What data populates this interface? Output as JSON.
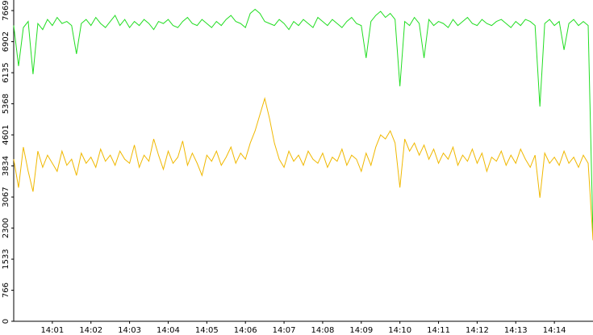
{
  "chart_data": {
    "type": "line",
    "x": [
      0,
      0.125,
      0.25,
      0.375,
      0.5,
      0.625,
      0.75,
      0.875,
      1,
      1.125,
      1.25,
      1.375,
      1.5,
      1.625,
      1.75,
      1.875,
      2,
      2.125,
      2.25,
      2.375,
      2.5,
      2.625,
      2.75,
      2.875,
      3,
      3.125,
      3.25,
      3.375,
      3.5,
      3.625,
      3.75,
      3.875,
      4,
      4.125,
      4.25,
      4.375,
      4.5,
      4.625,
      4.75,
      4.875,
      5,
      5.125,
      5.25,
      5.375,
      5.5,
      5.625,
      5.75,
      5.875,
      6,
      6.125,
      6.25,
      6.375,
      6.5,
      6.625,
      6.75,
      6.875,
      7,
      7.125,
      7.25,
      7.375,
      7.5,
      7.625,
      7.75,
      7.875,
      8,
      8.125,
      8.25,
      8.375,
      8.5,
      8.625,
      8.75,
      8.875,
      9,
      9.125,
      9.25,
      9.375,
      9.5,
      9.625,
      9.75,
      9.875,
      10,
      10.125,
      10.25,
      10.375,
      10.5,
      10.625,
      10.75,
      10.875,
      11,
      11.125,
      11.25,
      11.375,
      11.5,
      11.625,
      11.75,
      11.875,
      12,
      12.125,
      12.25,
      12.375,
      12.5,
      12.625,
      12.75,
      12.875,
      13,
      13.125,
      13.25,
      13.375,
      13.5,
      13.625,
      13.75,
      13.875,
      14,
      14.125,
      14.25,
      14.375,
      14.5,
      14.625,
      14.75,
      14.875,
      15
    ],
    "series": [
      {
        "color": "#22dd22",
        "values": [
          7300,
          6300,
          7250,
          7400,
          6100,
          7350,
          7200,
          7450,
          7300,
          7500,
          7350,
          7400,
          7300,
          6600,
          7350,
          7450,
          7300,
          7500,
          7350,
          7250,
          7400,
          7550,
          7300,
          7450,
          7250,
          7400,
          7300,
          7450,
          7350,
          7200,
          7400,
          7350,
          7450,
          7300,
          7250,
          7400,
          7500,
          7350,
          7300,
          7450,
          7350,
          7250,
          7400,
          7300,
          7450,
          7550,
          7400,
          7350,
          7250,
          7600,
          7700,
          7600,
          7400,
          7350,
          7300,
          7450,
          7350,
          7200,
          7400,
          7300,
          7450,
          7350,
          7250,
          7500,
          7400,
          7300,
          7450,
          7350,
          7250,
          7400,
          7500,
          7350,
          7300,
          6500,
          7400,
          7550,
          7650,
          7500,
          7600,
          7450,
          5800,
          7400,
          7300,
          7500,
          7350,
          6500,
          7450,
          7300,
          7400,
          7350,
          7250,
          7450,
          7300,
          7400,
          7500,
          7350,
          7300,
          7450,
          7350,
          7300,
          7400,
          7450,
          7350,
          7250,
          7400,
          7300,
          7450,
          7400,
          7300,
          5300,
          7350,
          7450,
          7300,
          7400,
          6700,
          7350,
          7450,
          7300,
          7400,
          7300,
          2100
        ]
      },
      {
        "color": "#f0b800",
        "values": [
          4000,
          3300,
          4300,
          3700,
          3200,
          4200,
          3800,
          4100,
          3900,
          3700,
          4200,
          3850,
          4000,
          3600,
          4150,
          3900,
          4050,
          3800,
          4250,
          3950,
          4100,
          3850,
          4200,
          4000,
          3900,
          4350,
          3800,
          4100,
          3950,
          4500,
          4100,
          3750,
          4200,
          3900,
          4050,
          4450,
          3850,
          4150,
          3900,
          3600,
          4100,
          3950,
          4200,
          3850,
          4050,
          4300,
          3900,
          4150,
          4000,
          4400,
          4700,
          5100,
          5500,
          5000,
          4400,
          4000,
          3800,
          4200,
          3950,
          4100,
          3850,
          4200,
          4000,
          3900,
          4150,
          3800,
          4050,
          3950,
          4250,
          3850,
          4100,
          4000,
          3700,
          4150,
          3850,
          4300,
          4600,
          4500,
          4700,
          4400,
          3300,
          4500,
          4200,
          4400,
          4100,
          4350,
          4000,
          4250,
          3900,
          4150,
          4000,
          4300,
          3850,
          4100,
          3950,
          4250,
          3900,
          4150,
          3700,
          4050,
          3950,
          4200,
          3850,
          4100,
          3900,
          4250,
          4000,
          3800,
          4100,
          3050,
          4150,
          3900,
          4050,
          3850,
          4200,
          3900,
          4050,
          3800,
          4100,
          3900,
          2000
        ]
      }
    ],
    "xlim": [
      0,
      15
    ],
    "xticks": [
      {
        "value": 1,
        "label": "14:01"
      },
      {
        "value": 2,
        "label": "14:02"
      },
      {
        "value": 3,
        "label": "14:03"
      },
      {
        "value": 4,
        "label": "14:04"
      },
      {
        "value": 5,
        "label": "14:05"
      },
      {
        "value": 6,
        "label": "14:06"
      },
      {
        "value": 7,
        "label": "14:07"
      },
      {
        "value": 8,
        "label": "14:08"
      },
      {
        "value": 9,
        "label": "14:09"
      },
      {
        "value": 10,
        "label": "14:10"
      },
      {
        "value": 11,
        "label": "14:11"
      },
      {
        "value": 12,
        "label": "14:12"
      },
      {
        "value": 13,
        "label": "14:13"
      },
      {
        "value": 14,
        "label": "14:14"
      }
    ],
    "ylim": [
      0,
      7930
    ],
    "yticks": [
      0,
      766,
      1533,
      2300,
      3067,
      3834,
      4601,
      5368,
      6135,
      6902,
      7669
    ]
  }
}
